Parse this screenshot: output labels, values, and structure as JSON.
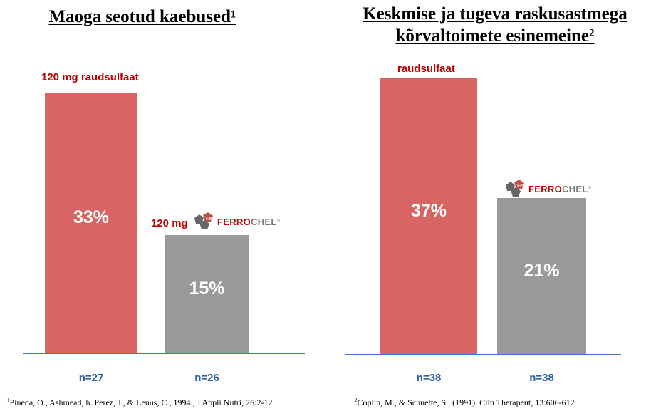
{
  "chart_data": [
    {
      "type": "bar",
      "title": "Maoga seotud kaebused¹",
      "categories": [
        "120 mg raudsulfaat",
        "120 mg FERROCHEL"
      ],
      "values": [
        33,
        15
      ],
      "value_labels": [
        "33%",
        "15%"
      ],
      "n_labels": [
        "n=27",
        "n=26"
      ],
      "colors": [
        "#d86464",
        "#999999"
      ],
      "ylim": [
        0,
        35
      ]
    },
    {
      "type": "bar",
      "title_lines": [
        "Keskmise ja tugeva raskusastmega",
        "kõrvaltoimete esinemeine²"
      ],
      "categories": [
        "raudsulfaat",
        "FERROCHEL"
      ],
      "values": [
        37,
        21
      ],
      "value_labels": [
        "37%",
        "21%"
      ],
      "n_labels": [
        "n=38",
        "n=38"
      ],
      "colors": [
        "#d86464",
        "#999999"
      ],
      "ylim": [
        0,
        38
      ]
    }
  ],
  "labels": {
    "left_red": "120 mg raudsulfaat",
    "left_gray_prefix": "120 mg",
    "right_red": "raudsulfaat"
  },
  "logo": {
    "fe": "Fe",
    "ferro": "FERRO",
    "chel": "CHEL",
    "reg": "®"
  },
  "footnotes": [
    {
      "mark": "1",
      "text": "Pineda, O.,  Ashmead, h. Perez, J.,  & Lenus, C., 1994., J Appli Nutri, 26:2-12"
    },
    {
      "mark": "2",
      "text": "Coplin, M., & Schuette, S., (1991). Clin Therapeut, 13:606-612"
    }
  ]
}
